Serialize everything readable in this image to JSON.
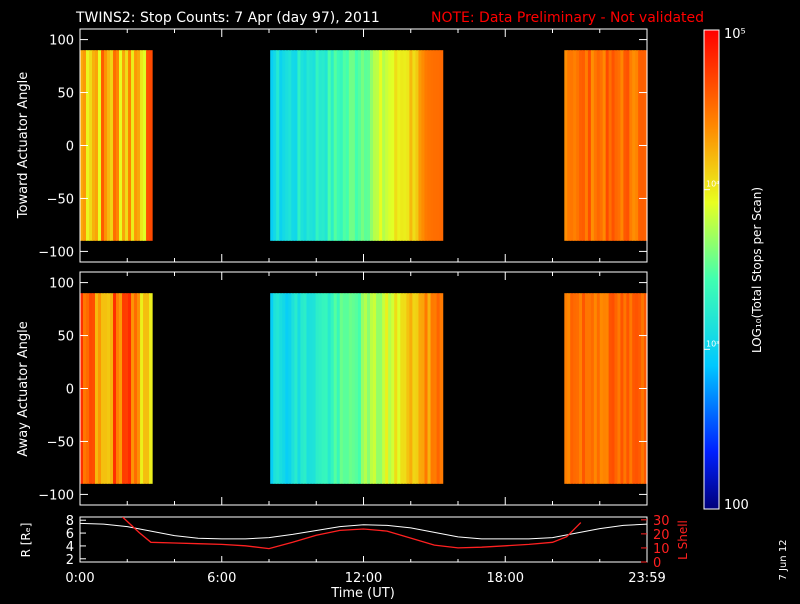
{
  "header": {
    "title": "TWINS2: Stop Counts:  7 Apr (day  97), 2011",
    "note": "NOTE: Data Preliminary - Not validated"
  },
  "colors": {
    "background": "#000000",
    "foreground": "#ffffff",
    "note": "#ff0000",
    "l_shell_line": "#ff2020",
    "r_line": "#ffffff"
  },
  "colorbar": {
    "label": "LOG₁₀(Total Stops per Scan)",
    "tick_labels": [
      "100",
      "10³",
      "10⁴",
      "10⁵"
    ],
    "tick_values": [
      100,
      1000,
      10000,
      100000
    ],
    "scale": "log"
  },
  "date_stamp": "7 Jun 12",
  "chart_data": [
    {
      "type": "heatmap",
      "ylabel": "Toward Actuator Angle",
      "yticks": [
        "100",
        "50",
        "0",
        "−50",
        "−100"
      ],
      "ylim": [
        -110,
        110
      ],
      "data_y_range": [
        -90,
        90
      ],
      "x_range_hours": [
        0,
        24
      ],
      "data_segments_hours": [
        {
          "start": 0.0,
          "end": 3.05,
          "level": 0.76
        },
        {
          "start": 8.05,
          "end": 15.35,
          "level": 0.52
        },
        {
          "start": 20.5,
          "end": 24.0,
          "level": 0.84
        }
      ]
    },
    {
      "type": "heatmap",
      "ylabel": "Away Actuator Angle",
      "yticks": [
        "100",
        "50",
        "0",
        "−50",
        "−100"
      ],
      "ylim": [
        -110,
        110
      ],
      "data_y_range": [
        -90,
        90
      ],
      "x_range_hours": [
        0,
        24
      ],
      "data_segments_hours": [
        {
          "start": 0.0,
          "end": 3.05,
          "level": 0.8
        },
        {
          "start": 8.05,
          "end": 15.35,
          "level": 0.5
        },
        {
          "start": 20.5,
          "end": 24.0,
          "level": 0.84
        }
      ]
    },
    {
      "type": "line",
      "ylabel": "R [Rₑ]",
      "y2label": "L Shell",
      "xlabel": "Time (UT)",
      "xticks": [
        "0:00",
        "6:00",
        "12:00",
        "18:00",
        "23:59"
      ],
      "xtick_hours": [
        0,
        6,
        12,
        18,
        24
      ],
      "yticks_left": [
        "2",
        "4",
        "6",
        "8"
      ],
      "ylim_left": [
        1.5,
        8.5
      ],
      "yticks_right": [
        "0",
        "10",
        "20",
        "30"
      ],
      "ylim_right": [
        0,
        32
      ],
      "series": [
        {
          "name": "R [Rₑ]",
          "axis": "left",
          "x": [
            0,
            1,
            2,
            3,
            4,
            5,
            6,
            7,
            8,
            9,
            10,
            11,
            12,
            13,
            14,
            15,
            16,
            17,
            18,
            19,
            20,
            21,
            22,
            23,
            24
          ],
          "y": [
            7.5,
            7.4,
            7.0,
            6.3,
            5.6,
            5.2,
            5.1,
            5.1,
            5.3,
            5.8,
            6.4,
            7.0,
            7.3,
            7.2,
            6.8,
            6.1,
            5.4,
            5.1,
            5.1,
            5.1,
            5.3,
            6.0,
            6.7,
            7.2,
            7.4
          ]
        },
        {
          "name": "L Shell",
          "axis": "right",
          "x": [
            1.8,
            2.5,
            3.0,
            4.0,
            5.0,
            6.0,
            7.0,
            8.0,
            9.0,
            10.0,
            11.0,
            12.0,
            13.0,
            14.0,
            15.0,
            16.0,
            17.0,
            18.0,
            19.0,
            20.0,
            20.6,
            21.2
          ],
          "y": [
            32,
            21,
            14,
            13.5,
            13,
            12.5,
            11.5,
            9.5,
            14,
            19,
            22.5,
            23.5,
            22,
            17,
            12,
            10,
            10.5,
            11.5,
            12.5,
            14,
            18,
            28
          ]
        }
      ]
    }
  ]
}
